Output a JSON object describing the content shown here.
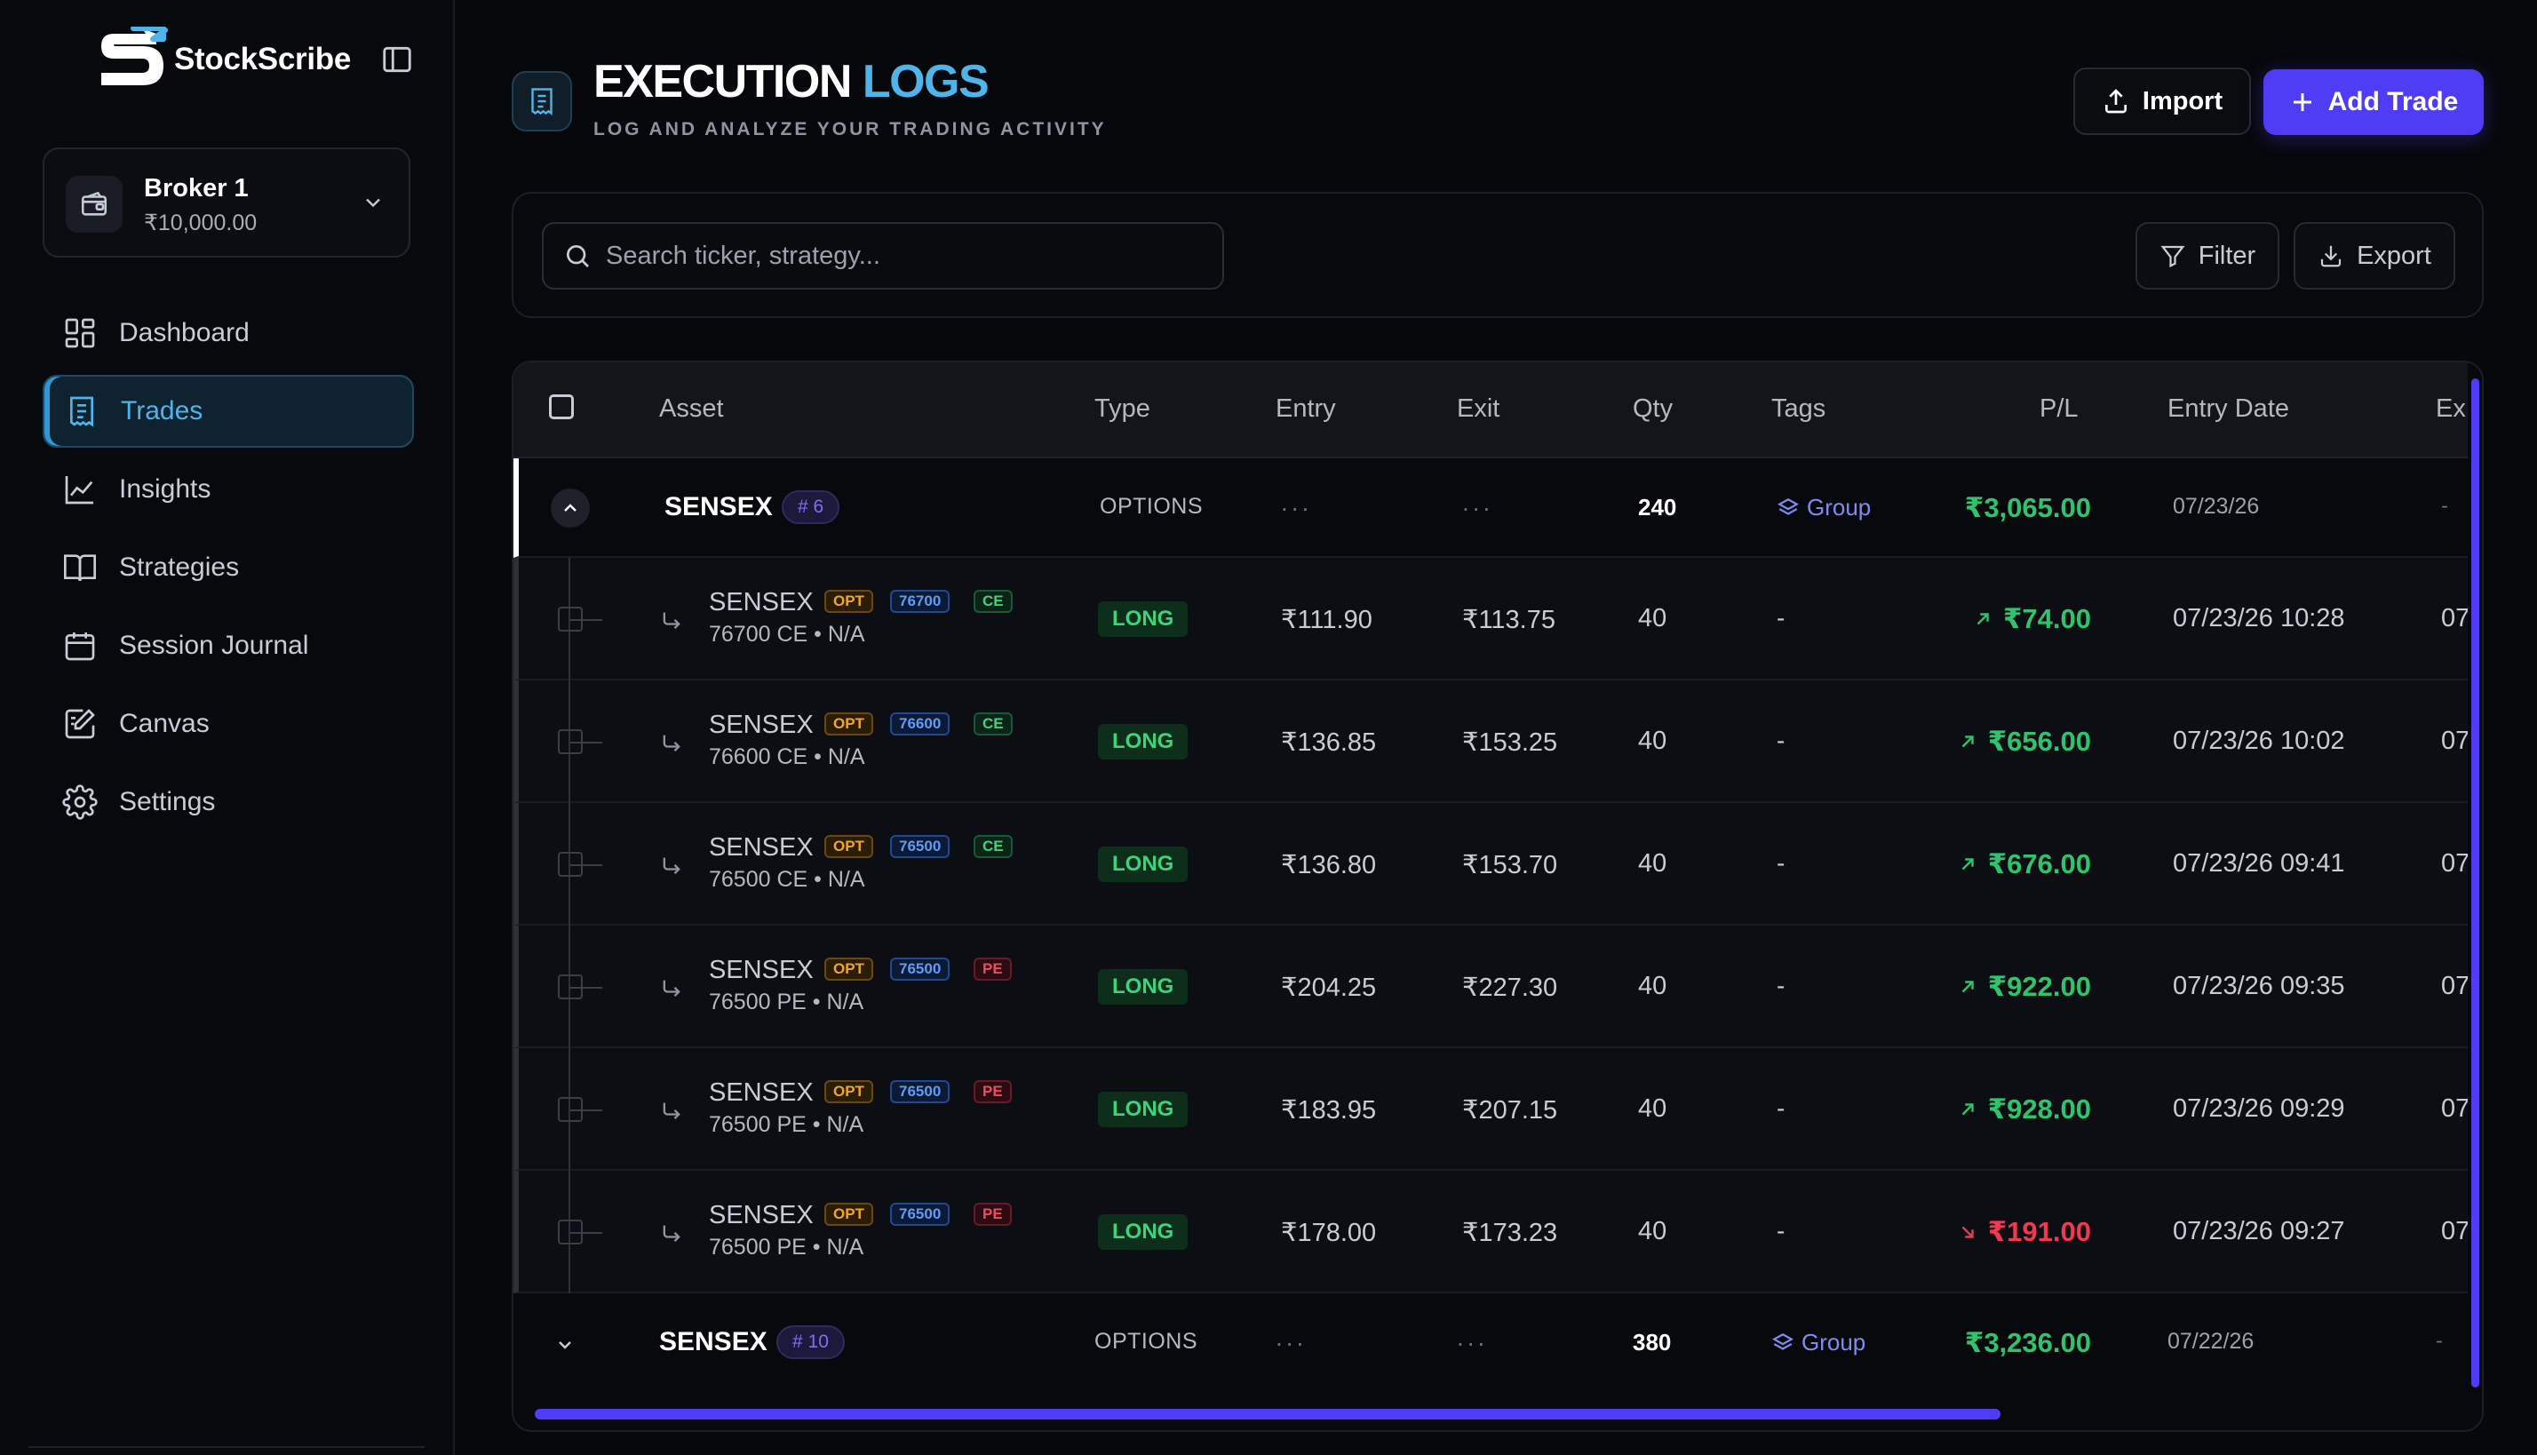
{
  "app": {
    "name": "StockScribe"
  },
  "broker": {
    "name": "Broker 1",
    "balance": "₹10,000.00"
  },
  "nav": [
    {
      "label": "Dashboard",
      "icon": "dashboard-icon"
    },
    {
      "label": "Trades",
      "icon": "trades-icon",
      "active": true
    },
    {
      "label": "Insights",
      "icon": "insights-icon"
    },
    {
      "label": "Strategies",
      "icon": "book-icon"
    },
    {
      "label": "Session Journal",
      "icon": "calendar-icon"
    },
    {
      "label": "Canvas",
      "icon": "canvas-icon"
    },
    {
      "label": "Settings",
      "icon": "gear-icon"
    }
  ],
  "header": {
    "title_main": "EXECUTION",
    "title_accent": "LOGS",
    "subtitle": "LOG AND ANALYZE YOUR TRADING ACTIVITY",
    "import_label": "Import",
    "add_label": "Add Trade"
  },
  "toolbar": {
    "search_placeholder": "Search ticker, strategy...",
    "filter_label": "Filter",
    "export_label": "Export"
  },
  "colors": {
    "accent": "#4fb4ea",
    "primary": "#4f3df5",
    "profit": "#2fc36d",
    "loss": "#f0394f"
  },
  "table": {
    "columns": [
      "Asset",
      "Type",
      "Entry",
      "Exit",
      "Qty",
      "Tags",
      "P/L",
      "Entry Date",
      "Ex"
    ],
    "groups": [
      {
        "asset": "SENSEX",
        "count": "# 6",
        "type": "OPTIONS",
        "entry": "...",
        "exit": "...",
        "qty": "240",
        "tag": "Group",
        "pl": "₹3,065.00",
        "date": "07/23/26",
        "exit_date": "-",
        "expanded": true,
        "children": [
          {
            "asset": "SENSEX",
            "opt": "OPT",
            "strike": "76700",
            "kind": "CE",
            "sub": "76700 CE • N/A",
            "side": "LONG",
            "entry": "₹111.90",
            "exit": "₹113.75",
            "qty": "40",
            "tags": "-",
            "pl": "₹74.00",
            "dir": "up",
            "date": "07/23/26 10:28",
            "exit_date": "07"
          },
          {
            "asset": "SENSEX",
            "opt": "OPT",
            "strike": "76600",
            "kind": "CE",
            "sub": "76600 CE • N/A",
            "side": "LONG",
            "entry": "₹136.85",
            "exit": "₹153.25",
            "qty": "40",
            "tags": "-",
            "pl": "₹656.00",
            "dir": "up",
            "date": "07/23/26 10:02",
            "exit_date": "07"
          },
          {
            "asset": "SENSEX",
            "opt": "OPT",
            "strike": "76500",
            "kind": "CE",
            "sub": "76500 CE • N/A",
            "side": "LONG",
            "entry": "₹136.80",
            "exit": "₹153.70",
            "qty": "40",
            "tags": "-",
            "pl": "₹676.00",
            "dir": "up",
            "date": "07/23/26 09:41",
            "exit_date": "07"
          },
          {
            "asset": "SENSEX",
            "opt": "OPT",
            "strike": "76500",
            "kind": "PE",
            "sub": "76500 PE • N/A",
            "side": "LONG",
            "entry": "₹204.25",
            "exit": "₹227.30",
            "qty": "40",
            "tags": "-",
            "pl": "₹922.00",
            "dir": "up",
            "date": "07/23/26 09:35",
            "exit_date": "07"
          },
          {
            "asset": "SENSEX",
            "opt": "OPT",
            "strike": "76500",
            "kind": "PE",
            "sub": "76500 PE • N/A",
            "side": "LONG",
            "entry": "₹183.95",
            "exit": "₹207.15",
            "qty": "40",
            "tags": "-",
            "pl": "₹928.00",
            "dir": "up",
            "date": "07/23/26 09:29",
            "exit_date": "07"
          },
          {
            "asset": "SENSEX",
            "opt": "OPT",
            "strike": "76500",
            "kind": "PE",
            "sub": "76500 PE • N/A",
            "side": "LONG",
            "entry": "₹178.00",
            "exit": "₹173.23",
            "qty": "40",
            "tags": "-",
            "pl": "₹191.00",
            "dir": "down",
            "date": "07/23/26 09:27",
            "exit_date": "07"
          }
        ]
      },
      {
        "asset": "SENSEX",
        "count": "# 10",
        "type": "OPTIONS",
        "entry": "...",
        "exit": "...",
        "qty": "380",
        "tag": "Group",
        "pl": "₹3,236.00",
        "date": "07/22/26",
        "exit_date": "-",
        "expanded": false
      }
    ]
  }
}
